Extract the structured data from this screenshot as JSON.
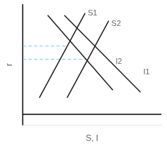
{
  "chart_data": {
    "type": "line",
    "xlabel": "S, I",
    "ylabel": "r",
    "xlim": [
      0,
      10
    ],
    "ylim": [
      -1.0,
      10
    ],
    "tick_labels": false,
    "grid": false,
    "series": [
      {
        "x": [
          1.2,
          4.5
        ],
        "values": [
          1.5,
          9.2
        ],
        "color": "#1a1a1a",
        "line_style": "solid"
      },
      {
        "x": [
          3.2,
          6.2
        ],
        "values": [
          1.5,
          8.5
        ],
        "color": "#1a1a1a",
        "line_style": "solid"
      },
      {
        "x": [
          1.8,
          6.5
        ],
        "values": [
          9.0,
          2.2
        ],
        "color": "#1a1a1a",
        "line_style": "solid"
      },
      {
        "x": [
          3.0,
          8.5
        ],
        "values": [
          9.0,
          2.0
        ],
        "color": "#1a1a1a",
        "line_style": "solid"
      },
      {
        "x": [
          0.0,
          3.15
        ],
        "values": [
          6.2,
          6.2
        ],
        "color": "#7ec8e3",
        "line_style": "dashed"
      },
      {
        "x": [
          0.0,
          4.55
        ],
        "values": [
          5.0,
          5.0
        ],
        "color": "#7ec8e3",
        "line_style": "dashed"
      }
    ],
    "annotations": [
      {
        "text": "S1",
        "x": 4.7,
        "y": 9.2
      },
      {
        "text": "S2",
        "x": 6.4,
        "y": 8.2
      },
      {
        "text": "I2",
        "x": 6.7,
        "y": 4.8
      },
      {
        "text": "I1",
        "x": 8.7,
        "y": 3.8
      }
    ]
  }
}
